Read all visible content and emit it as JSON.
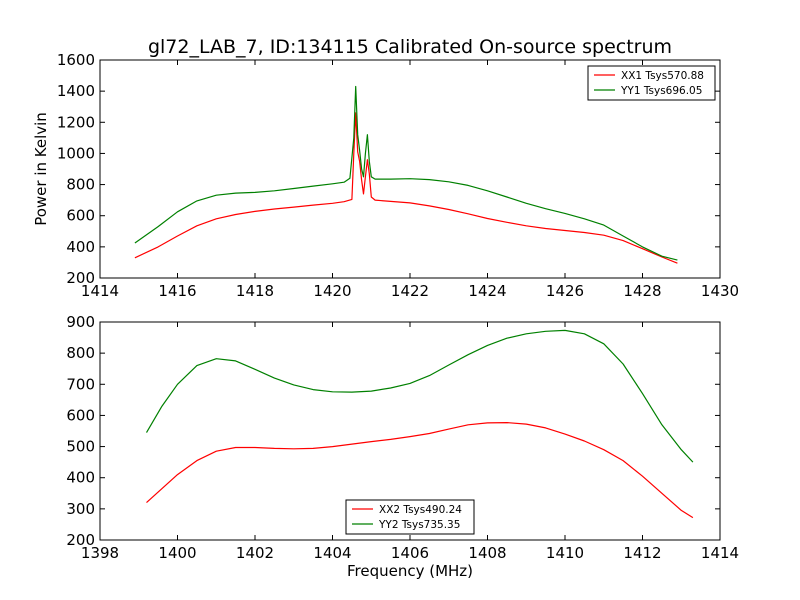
{
  "title": "gl72_LAB_7, ID:134115 Calibrated On-source spectrum",
  "chart_data": [
    {
      "type": "line",
      "ylabel": "Power in Kelvin",
      "xlabel": "",
      "xlim": [
        1414,
        1430
      ],
      "ylim": [
        200,
        1600
      ],
      "xticks": [
        "1414",
        "1416",
        "1418",
        "1420",
        "1422",
        "1424",
        "1426",
        "1428",
        "1430"
      ],
      "yticks": [
        "200",
        "400",
        "600",
        "800",
        "1000",
        "1200",
        "1400",
        "1600"
      ],
      "legend_position": "top-right",
      "grid": false,
      "series": [
        {
          "name": "XX1 Tsys570.88",
          "color": "#ff0000",
          "x": [
            1414.9,
            1415.5,
            1416.0,
            1416.5,
            1417.0,
            1417.5,
            1418.0,
            1418.5,
            1419.0,
            1419.5,
            1420.0,
            1420.3,
            1420.5,
            1420.55,
            1420.6,
            1420.65,
            1420.7,
            1420.75,
            1420.8,
            1420.85,
            1420.9,
            1420.95,
            1421.0,
            1421.1,
            1421.5,
            1422.0,
            1422.5,
            1423.0,
            1423.5,
            1424.0,
            1424.5,
            1425.0,
            1425.5,
            1426.0,
            1426.5,
            1427.0,
            1427.5,
            1428.0,
            1428.5,
            1428.9
          ],
          "values": [
            330,
            400,
            470,
            535,
            580,
            608,
            628,
            643,
            655,
            668,
            680,
            690,
            705,
            1000,
            1260,
            1010,
            950,
            830,
            740,
            850,
            960,
            870,
            720,
            700,
            692,
            682,
            663,
            640,
            612,
            582,
            558,
            535,
            518,
            505,
            492,
            475,
            440,
            388,
            335,
            295
          ]
        },
        {
          "name": "YY1 Tsys696.05",
          "color": "#008000",
          "x": [
            1414.9,
            1415.5,
            1416.0,
            1416.5,
            1417.0,
            1417.5,
            1418.0,
            1418.5,
            1419.0,
            1419.5,
            1420.0,
            1420.3,
            1420.45,
            1420.55,
            1420.6,
            1420.65,
            1420.7,
            1420.75,
            1420.8,
            1420.85,
            1420.9,
            1420.95,
            1421.0,
            1421.1,
            1421.5,
            1422.0,
            1422.5,
            1423.0,
            1423.5,
            1424.0,
            1424.5,
            1425.0,
            1425.5,
            1426.0,
            1426.5,
            1427.0,
            1427.5,
            1428.0,
            1428.5,
            1428.9
          ],
          "values": [
            425,
            530,
            625,
            695,
            732,
            745,
            750,
            760,
            775,
            790,
            805,
            815,
            840,
            1100,
            1430,
            1120,
            1020,
            900,
            850,
            1000,
            1120,
            950,
            850,
            835,
            835,
            838,
            832,
            818,
            795,
            760,
            720,
            680,
            645,
            615,
            580,
            540,
            470,
            400,
            340,
            315
          ]
        }
      ]
    },
    {
      "type": "line",
      "xlabel": "Frequency (MHz)",
      "ylabel": "",
      "xlim": [
        1398,
        1414
      ],
      "ylim": [
        200,
        900
      ],
      "xticks": [
        "1398",
        "1400",
        "1402",
        "1404",
        "1406",
        "1408",
        "1410",
        "1412",
        "1414"
      ],
      "yticks": [
        "200",
        "300",
        "400",
        "500",
        "600",
        "700",
        "800",
        "900"
      ],
      "legend_position": "lower-center",
      "grid": false,
      "series": [
        {
          "name": "XX2 Tsys490.24",
          "color": "#ff0000",
          "x": [
            1399.2,
            1399.6,
            1400.0,
            1400.5,
            1401.0,
            1401.5,
            1402.0,
            1402.5,
            1403.0,
            1403.5,
            1404.0,
            1404.5,
            1405.0,
            1405.5,
            1406.0,
            1406.5,
            1407.0,
            1407.5,
            1408.0,
            1408.5,
            1409.0,
            1409.5,
            1410.0,
            1410.5,
            1411.0,
            1411.5,
            1412.0,
            1412.5,
            1413.0,
            1413.3
          ],
          "values": [
            320,
            365,
            410,
            455,
            485,
            497,
            497,
            494,
            493,
            494,
            500,
            508,
            516,
            523,
            532,
            542,
            556,
            570,
            576,
            577,
            572,
            560,
            540,
            518,
            490,
            455,
            405,
            350,
            295,
            272
          ]
        },
        {
          "name": "YY2 Tsys735.35",
          "color": "#008000",
          "x": [
            1399.2,
            1399.6,
            1400.0,
            1400.5,
            1401.0,
            1401.5,
            1402.0,
            1402.5,
            1403.0,
            1403.5,
            1404.0,
            1404.5,
            1405.0,
            1405.5,
            1406.0,
            1406.5,
            1407.0,
            1407.5,
            1408.0,
            1408.5,
            1409.0,
            1409.5,
            1410.0,
            1410.5,
            1411.0,
            1411.5,
            1412.0,
            1412.5,
            1413.0,
            1413.3
          ],
          "values": [
            545,
            630,
            700,
            760,
            782,
            775,
            748,
            720,
            698,
            683,
            676,
            675,
            678,
            688,
            703,
            728,
            762,
            795,
            825,
            848,
            862,
            870,
            873,
            862,
            830,
            765,
            670,
            570,
            490,
            450
          ]
        }
      ]
    }
  ]
}
